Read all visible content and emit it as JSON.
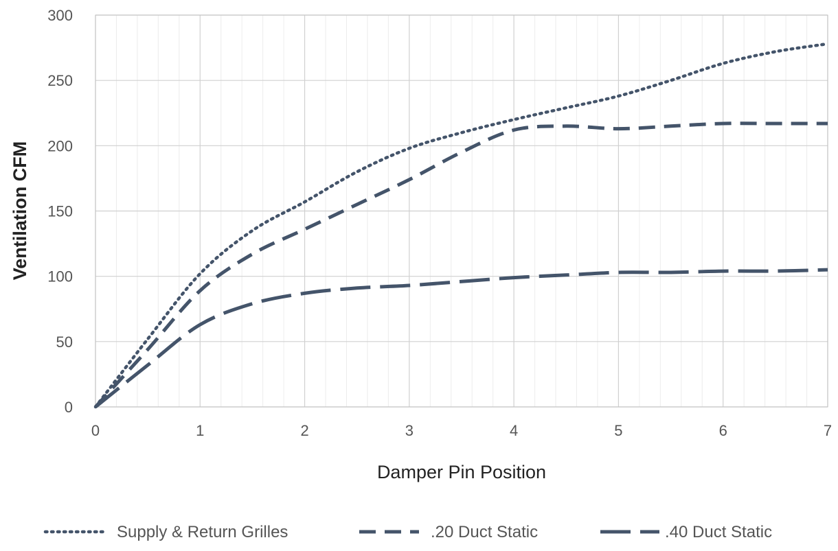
{
  "chart_data": {
    "type": "line",
    "xlabel": "Damper Pin Position",
    "ylabel": "Ventilation CFM",
    "xlim": [
      0,
      7
    ],
    "ylim": [
      0,
      300
    ],
    "x_ticks": [
      "0",
      "1",
      "2",
      "3",
      "4",
      "5",
      "6",
      "7"
    ],
    "y_ticks": [
      "0",
      "50",
      "100",
      "150",
      "200",
      "250",
      "300"
    ],
    "grid": true,
    "legend_position": "bottom",
    "series_color": "#44546a",
    "series": [
      {
        "name": "Supply & Return Grilles",
        "style": "dotted",
        "x": [
          0,
          0.5,
          1,
          1.5,
          2,
          2.5,
          3,
          3.5,
          4,
          4.5,
          5,
          5.5,
          6,
          6.5,
          7
        ],
        "y": [
          0,
          52,
          102,
          135,
          157,
          180,
          198,
          210,
          220,
          229,
          238,
          250,
          263,
          272,
          278
        ]
      },
      {
        "name": ".20 Duct Static",
        "style": "dashed",
        "x": [
          0,
          0.5,
          1,
          1.5,
          2,
          2.5,
          3,
          3.5,
          4,
          4.5,
          5,
          5.5,
          6,
          6.5,
          7
        ],
        "y": [
          0,
          44,
          89,
          117,
          136,
          155,
          174,
          195,
          212,
          215,
          213,
          215,
          217,
          217,
          217
        ]
      },
      {
        "name": ".40 Duct Static",
        "style": "long-dashed",
        "x": [
          0,
          0.5,
          1,
          1.5,
          2,
          2.5,
          3,
          3.5,
          4,
          4.5,
          5,
          5.5,
          6,
          6.5,
          7
        ],
        "y": [
          0,
          32,
          63,
          79,
          87,
          91,
          93,
          96,
          99,
          101,
          103,
          103,
          104,
          104,
          105
        ]
      }
    ]
  }
}
